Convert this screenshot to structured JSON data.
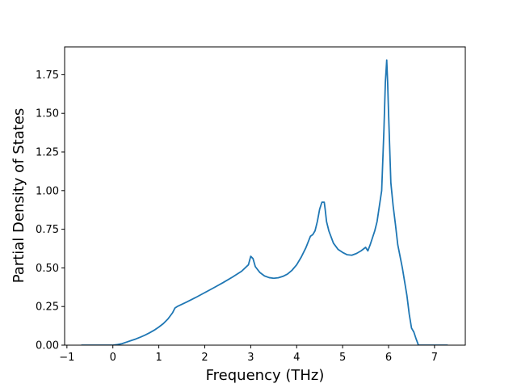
{
  "chart_data": {
    "type": "line",
    "title": "",
    "xlabel": "Frequency (THz)",
    "ylabel": "Partial Density of States",
    "xlim": [
      -1.05,
      7.67
    ],
    "ylim": [
      0.0,
      1.93
    ],
    "xticks": [
      -1,
      0,
      1,
      2,
      3,
      4,
      5,
      6,
      7
    ],
    "xtick_labels": [
      "−1",
      "0",
      "1",
      "2",
      "3",
      "4",
      "5",
      "6",
      "7"
    ],
    "yticks": [
      0.0,
      0.25,
      0.5,
      0.75,
      1.0,
      1.25,
      1.5,
      1.75
    ],
    "ytick_labels": [
      "0.00",
      "0.25",
      "0.50",
      "0.75",
      "1.00",
      "1.25",
      "1.50",
      "1.75"
    ],
    "grid": false,
    "line_color": "#1f77b4",
    "series": [
      {
        "x": [
          -0.68,
          -0.3,
          0.0,
          0.1,
          0.2,
          0.3,
          0.4,
          0.5,
          0.6,
          0.7,
          0.8,
          0.9,
          1.0,
          1.1,
          1.2,
          1.3,
          1.35,
          1.4,
          1.6,
          1.8,
          2.0,
          2.2,
          2.4,
          2.6,
          2.8,
          2.95,
          3.0,
          3.05,
          3.1,
          3.2,
          3.3,
          3.4,
          3.5,
          3.6,
          3.7,
          3.8,
          3.9,
          4.0,
          4.1,
          4.2,
          4.3,
          4.35,
          4.4,
          4.45,
          4.5,
          4.55,
          4.6,
          4.62,
          4.65,
          4.7,
          4.8,
          4.9,
          5.0,
          5.1,
          5.2,
          5.3,
          5.4,
          5.5,
          5.55,
          5.6,
          5.7,
          5.75,
          5.8,
          5.85,
          5.9,
          5.93,
          5.96,
          5.98,
          6.0,
          6.05,
          6.1,
          6.15,
          6.2,
          6.3,
          6.4,
          6.45,
          6.5,
          6.55,
          6.6,
          6.65,
          6.7,
          6.9,
          7.2,
          7.28
        ],
        "y": [
          0.0,
          0.0,
          0.0,
          0.004,
          0.01,
          0.02,
          0.03,
          0.04,
          0.052,
          0.065,
          0.08,
          0.097,
          0.117,
          0.14,
          0.17,
          0.21,
          0.24,
          0.25,
          0.278,
          0.308,
          0.34,
          0.372,
          0.405,
          0.44,
          0.478,
          0.52,
          0.575,
          0.56,
          0.508,
          0.47,
          0.448,
          0.437,
          0.433,
          0.436,
          0.445,
          0.46,
          0.485,
          0.52,
          0.57,
          0.63,
          0.705,
          0.715,
          0.74,
          0.8,
          0.88,
          0.925,
          0.925,
          0.88,
          0.8,
          0.74,
          0.66,
          0.62,
          0.6,
          0.585,
          0.582,
          0.593,
          0.61,
          0.633,
          0.61,
          0.65,
          0.74,
          0.8,
          0.9,
          1.0,
          1.4,
          1.7,
          1.845,
          1.7,
          1.5,
          1.05,
          0.9,
          0.78,
          0.65,
          0.5,
          0.32,
          0.2,
          0.11,
          0.085,
          0.04,
          0.0,
          0.0,
          0.0,
          0.0,
          0.0
        ]
      }
    ]
  }
}
